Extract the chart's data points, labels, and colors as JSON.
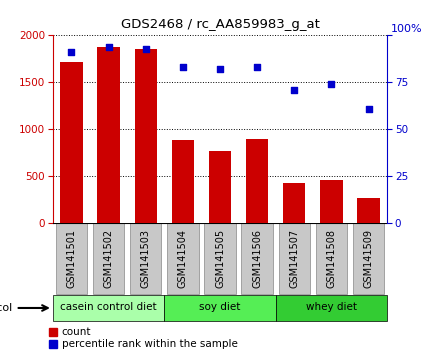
{
  "title": "GDS2468 / rc_AA859983_g_at",
  "samples": [
    "GSM141501",
    "GSM141502",
    "GSM141503",
    "GSM141504",
    "GSM141505",
    "GSM141506",
    "GSM141507",
    "GSM141508",
    "GSM141509"
  ],
  "counts": [
    1720,
    1880,
    1860,
    890,
    770,
    900,
    430,
    460,
    270
  ],
  "percentile_ranks": [
    91,
    94,
    93,
    83,
    82,
    83,
    71,
    74,
    61
  ],
  "groups": [
    {
      "label": "casein control diet",
      "start": 0,
      "end": 3,
      "color": "#aaffaa"
    },
    {
      "label": "soy diet",
      "start": 3,
      "end": 6,
      "color": "#55ee55"
    },
    {
      "label": "whey diet",
      "start": 6,
      "end": 9,
      "color": "#33cc33"
    }
  ],
  "ylim_left": [
    0,
    2000
  ],
  "ylim_right": [
    0,
    100
  ],
  "yticks_left": [
    0,
    500,
    1000,
    1500,
    2000
  ],
  "yticks_right": [
    0,
    25,
    50,
    75,
    100
  ],
  "bar_color": "#cc0000",
  "dot_color": "#0000cc",
  "background_color": "#ffffff",
  "plot_bg_color": "#ffffff",
  "grid_color": "#000000",
  "left_tick_color": "#cc0000",
  "right_tick_color": "#0000cc",
  "tick_box_color": "#c8c8c8",
  "tick_box_edge": "#888888"
}
